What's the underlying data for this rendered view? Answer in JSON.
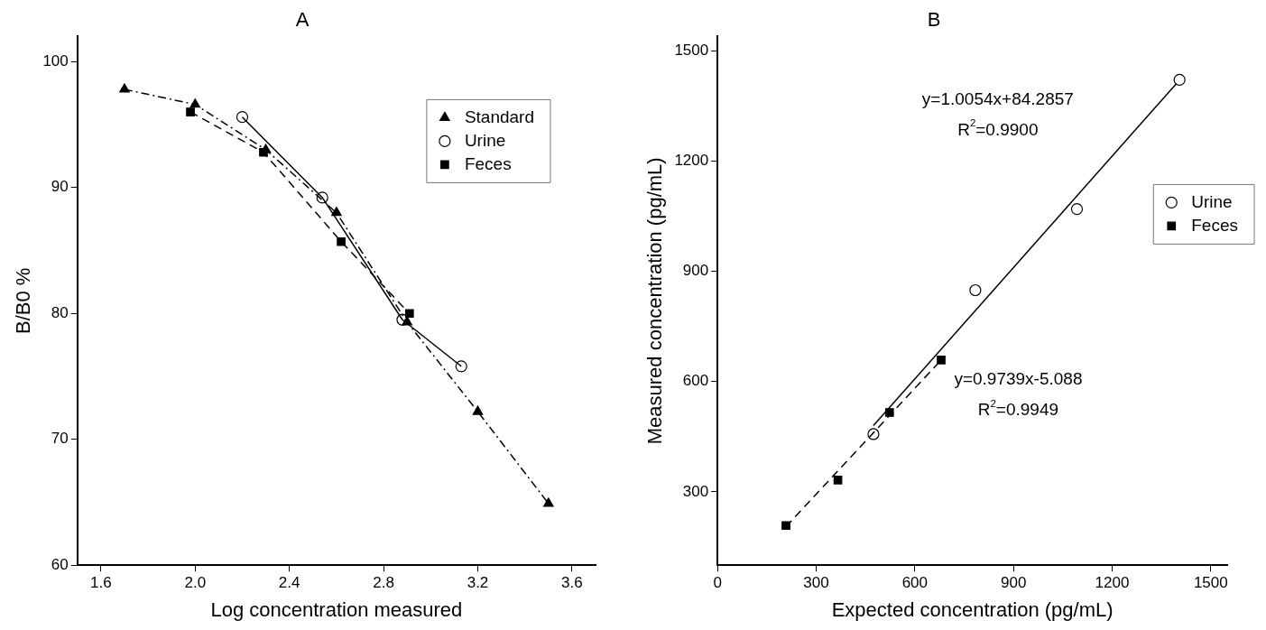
{
  "chart_data": [
    {
      "type": "line",
      "title": "A",
      "xlabel": "Log concentration measured",
      "ylabel": "B/B0 %",
      "xlim": [
        1.5,
        3.7
      ],
      "xticks": [
        1.6,
        {
          "value": 2,
          "label": "2.0"
        },
        2.4,
        2.8,
        3.2,
        3.6
      ],
      "ylim": [
        60,
        102
      ],
      "yticks": [
        60,
        70,
        80,
        90,
        100
      ],
      "grid": false,
      "legend": "top right",
      "series": [
        {
          "name": "Standard",
          "color": "#000000",
          "marker": "triangle",
          "line_style": "dashdot",
          "x": [
            1.7,
            2.0,
            2.3,
            2.6,
            2.9,
            3.2,
            3.5
          ],
          "values": [
            97.8,
            96.6,
            93.0,
            88.0,
            79.3,
            72.2,
            64.9
          ]
        },
        {
          "name": "Urine",
          "color": "#000000",
          "marker": "circle",
          "line_style": "solid",
          "x": [
            2.2,
            2.54,
            2.88,
            3.13
          ],
          "values": [
            95.6,
            89.2,
            79.5,
            75.8
          ]
        },
        {
          "name": "Feces",
          "color": "#000000",
          "marker": "square",
          "line_style": "dashed",
          "x": [
            1.98,
            2.29,
            2.62,
            2.91
          ],
          "values": [
            96.0,
            92.8,
            85.7,
            80.0
          ]
        }
      ]
    },
    {
      "type": "scatter",
      "title": "B",
      "xlabel": "Expected concentration (pg/mL)",
      "ylabel": "Measured concentration (pg/mL)",
      "xlim": [
        0,
        1550
      ],
      "xticks": [
        0,
        300,
        600,
        900,
        1200,
        1500
      ],
      "ylim": [
        100,
        1540
      ],
      "yticks": [
        300,
        600,
        900,
        1200,
        1500
      ],
      "grid": false,
      "legend": "right",
      "series": [
        {
          "name": "Urine",
          "color": "#000000",
          "marker": "circle",
          "x": [
            474,
            784,
            1093,
            1405
          ],
          "values": [
            457,
            849,
            1070,
            1422
          ]
        },
        {
          "name": "Feces",
          "color": "#000000",
          "marker": "square",
          "x": [
            208,
            366,
            523,
            680
          ],
          "values": [
            208,
            332,
            516,
            659
          ]
        },
        {
          "type": "line",
          "color": "#000000",
          "marker": "none",
          "line_style": "solid",
          "x": [
            474,
            1396
          ],
          "values": [
            480,
            1412
          ]
        },
        {
          "type": "line",
          "color": "#000000",
          "marker": "none",
          "line_style": "dashed",
          "x": [
            208,
            672
          ],
          "values": [
            205,
            651
          ]
        }
      ],
      "annotations": [
        "y=1.0054x+84.2857",
        "R$^{2}$=0.9900",
        "y=0.9739x-5.088",
        "R$^{2}$=0.9949"
      ]
    }
  ]
}
